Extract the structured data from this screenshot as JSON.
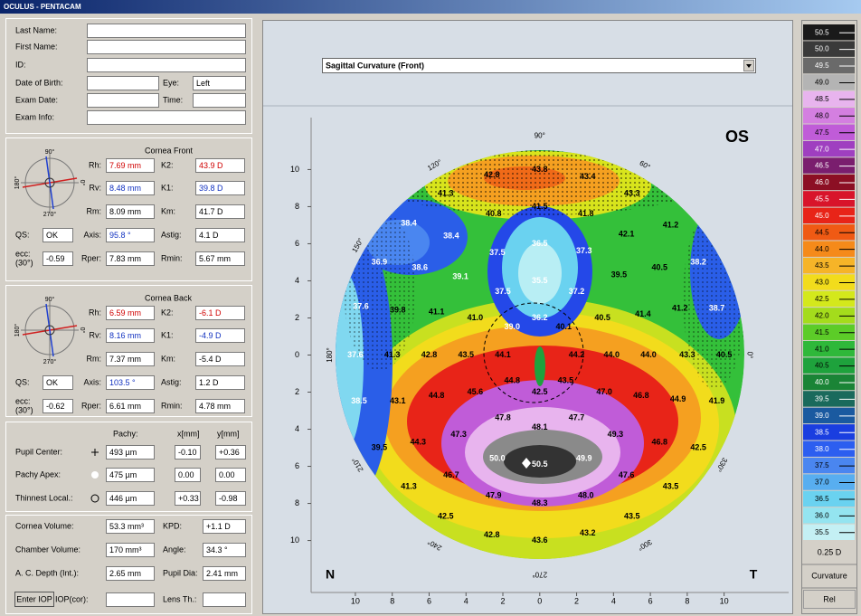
{
  "window_title": "OCULUS - PENTACAM",
  "patient": {
    "labels": [
      "Last Name:",
      "First Name:",
      "ID:",
      "Date of Birth:",
      "Exam Date:",
      "Exam Info:"
    ],
    "eye_label": "Eye:",
    "eye": "Left",
    "time_label": "Time:"
  },
  "cornea_front": {
    "title": "Cornea Front",
    "compass": [
      "90°",
      "0°",
      "180°",
      "270°"
    ],
    "rows": [
      [
        "Rh:",
        "7.69 mm",
        "K2:",
        "43.9 D"
      ],
      [
        "Rv:",
        "8.48 mm",
        "K1:",
        "39.8 D"
      ],
      [
        "Rm:",
        "8.09 mm",
        "Km:",
        "41.7 D"
      ],
      [
        "Axis:",
        "95.8 °",
        "Astig:",
        "4.1 D"
      ],
      [
        "Rper:",
        "7.83 mm",
        "Rmin:",
        "5.67 mm"
      ]
    ],
    "qs_label": "QS:",
    "qs": "OK",
    "ecc_label": [
      "ecc:",
      "(30°)"
    ],
    "ecc": "-0.59"
  },
  "cornea_back": {
    "title": "Cornea Back",
    "compass": [
      "90°",
      "0°",
      "180°",
      "270°"
    ],
    "rows": [
      [
        "Rh:",
        "6.59 mm",
        "K2:",
        "-6.1 D"
      ],
      [
        "Rv:",
        "8.16 mm",
        "K1:",
        "-4.9 D"
      ],
      [
        "Rm:",
        "7.37 mm",
        "Km:",
        "-5.4 D"
      ],
      [
        "Axis:",
        "103.5 °",
        "Astig:",
        "1.2 D"
      ],
      [
        "Rper:",
        "6.61 mm",
        "Rmin:",
        "4.78 mm"
      ]
    ],
    "qs_label": "QS:",
    "qs": "OK",
    "ecc_label": [
      "ecc:",
      "(30°)"
    ],
    "ecc": "-0.62"
  },
  "pachy": {
    "headers": [
      "Pachy:",
      "x[mm]",
      "y[mm]"
    ],
    "rows": [
      [
        "Pupil Center:",
        "493 µm",
        "-0.10",
        "+0.36"
      ],
      [
        "Pachy Apex:",
        "475 µm",
        "0.00",
        "0.00"
      ],
      [
        "Thinnest Local.:",
        "446 µm",
        "+0.33",
        "-0.98"
      ]
    ]
  },
  "volumes": {
    "rows": [
      [
        "Cornea Volume:",
        "53.3 mm³",
        "KPD:",
        "+1.1 D"
      ],
      [
        "Chamber Volume:",
        "170 mm³",
        "Angle:",
        "34.3 °"
      ],
      [
        "A. C. Depth (Int.):",
        "2.65 mm",
        "Pupil Dia:",
        "2.41 mm"
      ]
    ],
    "button": "Enter IOP",
    "iop_label": "IOP(cor):",
    "lens_label": "Lens Th.:"
  },
  "map": {
    "dropdown": "Sagittal Curvature (Front)",
    "eye": "OS",
    "nasal": "N",
    "temporal": "T",
    "xlim": [
      -12.4,
      13.5
    ],
    "ylim": [
      -12.8,
      12.8
    ],
    "xticks": [
      {
        "value": -10,
        "label": "10"
      },
      {
        "value": -8,
        "label": "8"
      },
      {
        "value": -6,
        "label": "6"
      },
      {
        "value": -4,
        "label": "4"
      },
      {
        "value": -2,
        "label": "2"
      },
      0,
      2,
      4,
      6,
      8,
      10
    ],
    "yticks": [
      10,
      8,
      6,
      4,
      2,
      0,
      {
        "value": -2,
        "label": "2"
      },
      {
        "value": -4,
        "label": "4"
      },
      {
        "value": -6,
        "label": "6"
      },
      {
        "value": -8,
        "label": "8"
      },
      {
        "value": -10,
        "label": "10"
      }
    ],
    "angles": [
      {
        "value": 90,
        "label": "90°"
      },
      {
        "value": 120,
        "label": "120°"
      },
      {
        "value": 60,
        "label": "60°"
      },
      {
        "value": 150,
        "label": "150°"
      },
      {
        "value": 0,
        "label": "0°"
      },
      {
        "value": 180,
        "label": "180°"
      },
      {
        "value": 210,
        "label": "210°"
      },
      {
        "value": 330,
        "label": "330°"
      },
      {
        "value": 240,
        "label": "240°"
      },
      {
        "value": 300,
        "label": "300°"
      },
      {
        "value": 270,
        "label": "270°"
      }
    ],
    "labels": [
      {
        "text": "43.8",
        "x": 0,
        "y": 10
      },
      {
        "text": "42.8",
        "x": -2.6,
        "y": 9.7
      },
      {
        "text": "43.4",
        "x": 2.6,
        "y": 9.6
      },
      {
        "text": "41.3",
        "x": -5.1,
        "y": 8.7
      },
      {
        "text": "43.3",
        "x": 5,
        "y": 8.7
      },
      {
        "text": "40.8",
        "x": -2.5,
        "y": 7.6
      },
      {
        "text": "41.5",
        "x": 0,
        "y": 8
      },
      {
        "text": "41.8",
        "x": 2.5,
        "y": 7.6
      },
      {
        "text": "41.2",
        "x": 7.1,
        "y": 7
      },
      {
        "text": "38.4",
        "x": -7.1,
        "y": 7.1
      },
      {
        "text": "38.4",
        "x": -4.8,
        "y": 6.4
      },
      {
        "text": "42.1",
        "x": 4.7,
        "y": 6.5
      },
      {
        "text": "36.5",
        "x": 0,
        "y": 6
      },
      {
        "text": "37.5",
        "x": -2.3,
        "y": 5.5
      },
      {
        "text": "37.3",
        "x": 2.4,
        "y": 5.6
      },
      {
        "text": "36.9",
        "x": -8.7,
        "y": 5
      },
      {
        "text": "38.6",
        "x": -6.5,
        "y": 4.7
      },
      {
        "text": "40.5",
        "x": 6.5,
        "y": 4.7
      },
      {
        "text": "38.2",
        "x": 8.6,
        "y": 5
      },
      {
        "text": "39.1",
        "x": -4.3,
        "y": 4.2
      },
      {
        "text": "35.5",
        "x": 0,
        "y": 4
      },
      {
        "text": "39.5",
        "x": 4.3,
        "y": 4.3
      },
      {
        "text": "37.5",
        "x": -2,
        "y": 3.4
      },
      {
        "text": "37.2",
        "x": 2,
        "y": 3.4
      },
      {
        "text": "37.6",
        "x": -9.7,
        "y": 2.6
      },
      {
        "text": "39.8",
        "x": -7.7,
        "y": 2.4
      },
      {
        "text": "41.1",
        "x": -5.6,
        "y": 2.3
      },
      {
        "text": "41.0",
        "x": -3.5,
        "y": 2
      },
      {
        "text": "36.2",
        "x": 0,
        "y": 2
      },
      {
        "text": "40.5",
        "x": 3.4,
        "y": 2
      },
      {
        "text": "41.4",
        "x": 5.6,
        "y": 2.2
      },
      {
        "text": "41.2",
        "x": 7.6,
        "y": 2.5
      },
      {
        "text": "38.7",
        "x": 9.6,
        "y": 2.5
      },
      {
        "text": "39.0",
        "x": -1.5,
        "y": 1.5
      },
      {
        "text": "40.1",
        "x": 1.3,
        "y": 1.5
      },
      {
        "text": "37.6",
        "x": -10,
        "y": 0
      },
      {
        "text": "41.3",
        "x": -8,
        "y": 0
      },
      {
        "text": "42.8",
        "x": -6,
        "y": 0
      },
      {
        "text": "43.5",
        "x": -4,
        "y": 0
      },
      {
        "text": "44.1",
        "x": -2,
        "y": 0
      },
      {
        "text": "44.2",
        "x": 2,
        "y": 0
      },
      {
        "text": "44.0",
        "x": 3.9,
        "y": 0
      },
      {
        "text": "44.0",
        "x": 5.9,
        "y": 0
      },
      {
        "text": "43.3",
        "x": 8,
        "y": 0
      },
      {
        "text": "40.5",
        "x": 10,
        "y": 0
      },
      {
        "text": "44.8",
        "x": -1.5,
        "y": -1.4
      },
      {
        "text": "43.5",
        "x": 1.4,
        "y": -1.4
      },
      {
        "text": "42.5",
        "x": 0,
        "y": -2
      },
      {
        "text": "38.5",
        "x": -9.8,
        "y": -2.5
      },
      {
        "text": "43.1",
        "x": -7.7,
        "y": -2.5
      },
      {
        "text": "44.8",
        "x": -5.6,
        "y": -2.2
      },
      {
        "text": "45.6",
        "x": -3.5,
        "y": -2
      },
      {
        "text": "47.0",
        "x": 3.5,
        "y": -2
      },
      {
        "text": "46.8",
        "x": 5.5,
        "y": -2.2
      },
      {
        "text": "44.9",
        "x": 7.5,
        "y": -2.4
      },
      {
        "text": "41.9",
        "x": 9.6,
        "y": -2.5
      },
      {
        "text": "47.8",
        "x": -2,
        "y": -3.4
      },
      {
        "text": "48.1",
        "x": 0,
        "y": -3.9
      },
      {
        "text": "47.7",
        "x": 2,
        "y": -3.4
      },
      {
        "text": "47.3",
        "x": -4.4,
        "y": -4.3
      },
      {
        "text": "44.3",
        "x": -6.6,
        "y": -4.7
      },
      {
        "text": "49.3",
        "x": 4.1,
        "y": -4.3
      },
      {
        "text": "46.8",
        "x": 6.5,
        "y": -4.7
      },
      {
        "text": "42.5",
        "x": 8.6,
        "y": -5
      },
      {
        "text": "39.5",
        "x": -8.7,
        "y": -5
      },
      {
        "text": "50.0",
        "x": -2.3,
        "y": -5.6
      },
      {
        "text": "50.5",
        "x": 0,
        "y": -5.9
      },
      {
        "text": "49.9",
        "x": 2.4,
        "y": -5.6
      },
      {
        "text": "46.7",
        "x": -4.8,
        "y": -6.5
      },
      {
        "text": "47.6",
        "x": 4.7,
        "y": -6.5
      },
      {
        "text": "41.3",
        "x": -7.1,
        "y": -7.1
      },
      {
        "text": "43.5",
        "x": 7.1,
        "y": -7.1
      },
      {
        "text": "47.9",
        "x": -2.5,
        "y": -7.6
      },
      {
        "text": "48.3",
        "x": 0,
        "y": -8
      },
      {
        "text": "48.0",
        "x": 2.5,
        "y": -7.6
      },
      {
        "text": "42.5",
        "x": -5.1,
        "y": -8.7
      },
      {
        "text": "43.5",
        "x": 5,
        "y": -8.7
      },
      {
        "text": "42.8",
        "x": -2.6,
        "y": -9.7
      },
      {
        "text": "43.6",
        "x": 0,
        "y": -10
      },
      {
        "text": "43.2",
        "x": 2.6,
        "y": -9.6
      }
    ]
  },
  "scale": {
    "values": [
      50.5,
      50,
      49.5,
      49,
      48.5,
      48,
      47.5,
      47,
      46.5,
      46,
      45.5,
      45,
      44.5,
      44,
      43.5,
      43,
      42.5,
      42,
      41.5,
      41,
      40.5,
      40,
      39.5,
      39,
      38.5,
      38,
      37.5,
      37,
      36.5,
      36,
      35.5
    ],
    "value_labels": [
      "50.5",
      "50.0",
      "49.5",
      "49.0",
      "48.5",
      "48.0",
      "47.5",
      "47.0",
      "46.5",
      "46.0",
      "45.5",
      "45.0",
      "44.5",
      "44.0",
      "43.5",
      "43.0",
      "42.5",
      "42.0",
      "41.5",
      "41.0",
      "40.5",
      "40.0",
      "39.5",
      "39.0",
      "38.5",
      "38.0",
      "37.5",
      "37.0",
      "36.5",
      "36.0",
      "35.5"
    ],
    "colors": [
      "#1a1a1a",
      "#3a3a3a",
      "#6a6a6a",
      "#b4b4b4",
      "#e8b4ee",
      "#d47fe0",
      "#c05cd8",
      "#9f3fc0",
      "#7a1e6e",
      "#8c0f24",
      "#d8142a",
      "#e82418",
      "#f05a14",
      "#f58a1a",
      "#f6b428",
      "#f2dc1c",
      "#d4e81c",
      "#a4dc1c",
      "#5ccc28",
      "#2fb83a",
      "#1ea23c",
      "#1a8436",
      "#1a6a5c",
      "#1a5aa0",
      "#1a3ee0",
      "#2c5ef0",
      "#4a86f0",
      "#58aef0",
      "#6ad2f0",
      "#94e4f0",
      "#c4f0f4"
    ],
    "step": "0.25 D",
    "mode": "Curvature",
    "reference": "Rel"
  }
}
